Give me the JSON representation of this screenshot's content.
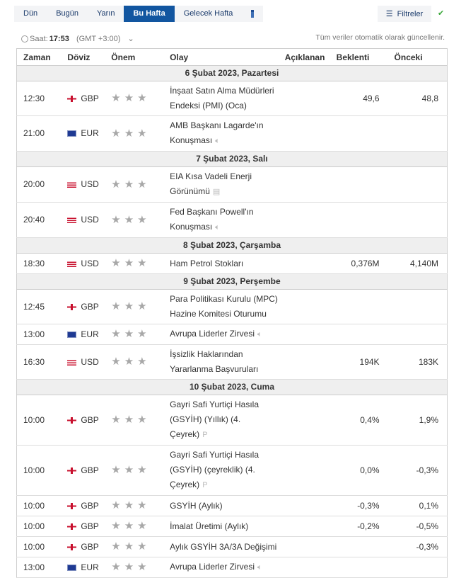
{
  "tabs": [
    "Dün",
    "Bugün",
    "Yarın",
    "Bu Hafta",
    "Gelecek Hafta"
  ],
  "active_tab": 3,
  "filter_label": "Filtreler",
  "clock": {
    "label": "Saat:",
    "time": "17:53",
    "tz": "(GMT +3:00)"
  },
  "auto_update": "Tüm veriler otomatik olarak güncellenir.",
  "columns": [
    "Zaman",
    "Döviz",
    "Önem",
    "Olay",
    "Açıklanan",
    "Beklenti",
    "Önceki"
  ],
  "rows": [
    {
      "day": "6 Şubat 2023, Pazartesi"
    },
    {
      "time": "12:30",
      "cur": "GBP",
      "event": "İnşaat Satın Alma Müdürleri Endeksi (PMI) (Oca)",
      "actual": "",
      "forecast": "49,6",
      "previous": "48,8"
    },
    {
      "time": "21:00",
      "cur": "EUR",
      "event": "AMB Başkanı Lagarde'ın Konuşması",
      "icon": "speaker-icon",
      "actual": "",
      "forecast": "",
      "previous": ""
    },
    {
      "day": "7 Şubat 2023, Salı"
    },
    {
      "time": "20:00",
      "cur": "USD",
      "event": "EIA Kısa Vadeli Enerji Görünümü",
      "icon": "document-icon",
      "actual": "",
      "forecast": "",
      "previous": ""
    },
    {
      "time": "20:40",
      "cur": "USD",
      "event": "Fed Başkanı Powell'ın Konuşması",
      "icon": "speaker-icon",
      "actual": "",
      "forecast": "",
      "previous": ""
    },
    {
      "day": "8 Şubat 2023, Çarşamba"
    },
    {
      "time": "18:30",
      "cur": "USD",
      "event": "Ham Petrol Stokları",
      "actual": "",
      "forecast": "0,376M",
      "previous": "4,140M"
    },
    {
      "day": "9 Şubat 2023, Perşembe"
    },
    {
      "time": "12:45",
      "cur": "GBP",
      "event": "Para Politikası Kurulu (MPC) Hazine Komitesi Oturumu",
      "actual": "",
      "forecast": "",
      "previous": ""
    },
    {
      "time": "13:00",
      "cur": "EUR",
      "event": "Avrupa Liderler Zirvesi",
      "icon": "speaker-icon",
      "actual": "",
      "forecast": "",
      "previous": ""
    },
    {
      "time": "16:30",
      "cur": "USD",
      "event": "İşsizlik Haklarından Yararlanma Başvuruları",
      "actual": "",
      "forecast": "194K",
      "previous": "183K"
    },
    {
      "day": "10 Şubat 2023, Cuma"
    },
    {
      "time": "10:00",
      "cur": "GBP",
      "event": "Gayri Safi Yurtiçi Hasıla (GSYİH) (Yıllık) (4. Çeyrek)",
      "icon": "preliminary-icon",
      "actual": "",
      "forecast": "0,4%",
      "previous": "1,9%"
    },
    {
      "time": "10:00",
      "cur": "GBP",
      "event": "Gayri Safi Yurtiçi Hasıla (GSYİH) (çeyreklik) (4. Çeyrek)",
      "icon": "preliminary-icon",
      "actual": "",
      "forecast": "0,0%",
      "previous": "-0,3%"
    },
    {
      "time": "10:00",
      "cur": "GBP",
      "event": "GSYİH (Aylık)",
      "actual": "",
      "forecast": "-0,3%",
      "previous": "0,1%"
    },
    {
      "time": "10:00",
      "cur": "GBP",
      "event": "İmalat Üretimi (Aylık)",
      "actual": "",
      "forecast": "-0,2%",
      "previous": "-0,5%"
    },
    {
      "time": "10:00",
      "cur": "GBP",
      "event": "Aylık GSYİH 3A/3A Değişimi",
      "actual": "",
      "forecast": "",
      "previous": "-0,3%"
    },
    {
      "time": "13:00",
      "cur": "EUR",
      "event": "Avrupa Liderler Zirvesi",
      "icon": "speaker-icon",
      "actual": "",
      "forecast": "",
      "previous": ""
    }
  ]
}
